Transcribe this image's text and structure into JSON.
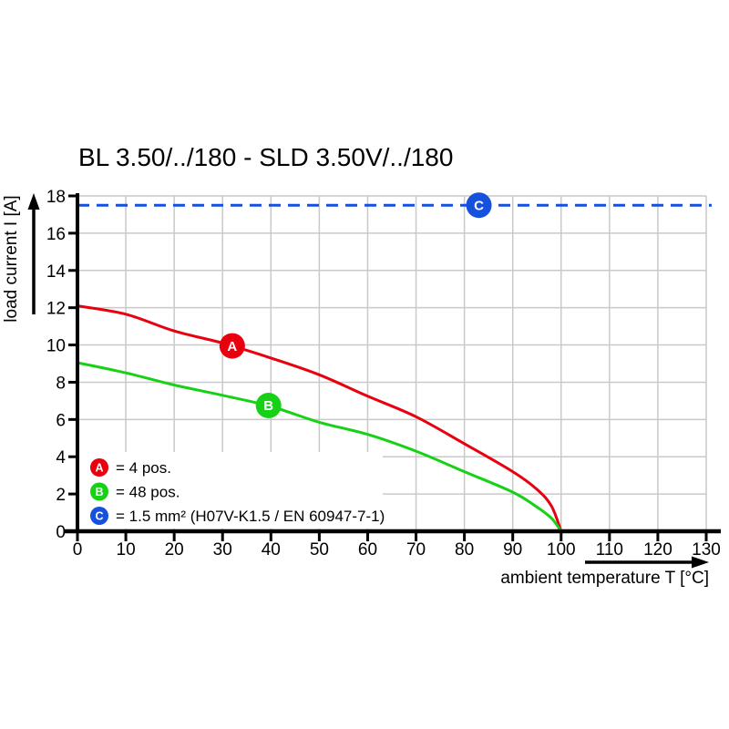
{
  "chart_data": {
    "type": "line",
    "title": "BL 3.50/../180 - SLD 3.50V/../180",
    "xlabel": "ambient temperature T [°C]",
    "ylabel": "load current I [A]",
    "xlim": [
      0,
      130
    ],
    "ylim": [
      0,
      18
    ],
    "x_ticks": [
      0,
      10,
      20,
      30,
      40,
      50,
      60,
      70,
      80,
      90,
      100,
      110,
      120,
      130
    ],
    "y_ticks": [
      0,
      2,
      4,
      6,
      8,
      10,
      12,
      14,
      16,
      18
    ],
    "grid": true,
    "legend_position": "lower-left-inside",
    "colors": {
      "series_a_red": "#e8000f",
      "series_b_green": "#17d117",
      "series_c_blue": "#1551dc",
      "grid_gray": "#c9c9c9",
      "axis_black": "#000000",
      "background": "#ffffff"
    },
    "series": [
      {
        "id": "A",
        "legend": "= 4 pos.",
        "color": "#e8000f",
        "style": "curve",
        "marker": {
          "x": 32,
          "y": 9.95
        },
        "points": [
          [
            0,
            12.1
          ],
          [
            10,
            11.65
          ],
          [
            20,
            10.75
          ],
          [
            30,
            10.1
          ],
          [
            40,
            9.3
          ],
          [
            50,
            8.4
          ],
          [
            60,
            7.25
          ],
          [
            70,
            6.15
          ],
          [
            80,
            4.7
          ],
          [
            90,
            3.2
          ],
          [
            95,
            2.25
          ],
          [
            98,
            1.35
          ],
          [
            100,
            0
          ]
        ]
      },
      {
        "id": "B",
        "legend": "= 48 pos.",
        "color": "#17d117",
        "style": "curve",
        "marker": {
          "x": 39.5,
          "y": 6.75
        },
        "points": [
          [
            0,
            9.05
          ],
          [
            10,
            8.5
          ],
          [
            20,
            7.85
          ],
          [
            30,
            7.3
          ],
          [
            40,
            6.7
          ],
          [
            50,
            5.85
          ],
          [
            60,
            5.2
          ],
          [
            70,
            4.3
          ],
          [
            80,
            3.2
          ],
          [
            90,
            2.1
          ],
          [
            95,
            1.3
          ],
          [
            98,
            0.7
          ],
          [
            100,
            0
          ]
        ]
      },
      {
        "id": "C",
        "legend": "= 1.5 mm² (H07V-K1.5 / EN 60947-7-1)",
        "color": "#1551dc",
        "style": "dashed-horizontal",
        "y": 17.5,
        "marker": {
          "x": 83,
          "y": 17.5
        }
      }
    ]
  }
}
